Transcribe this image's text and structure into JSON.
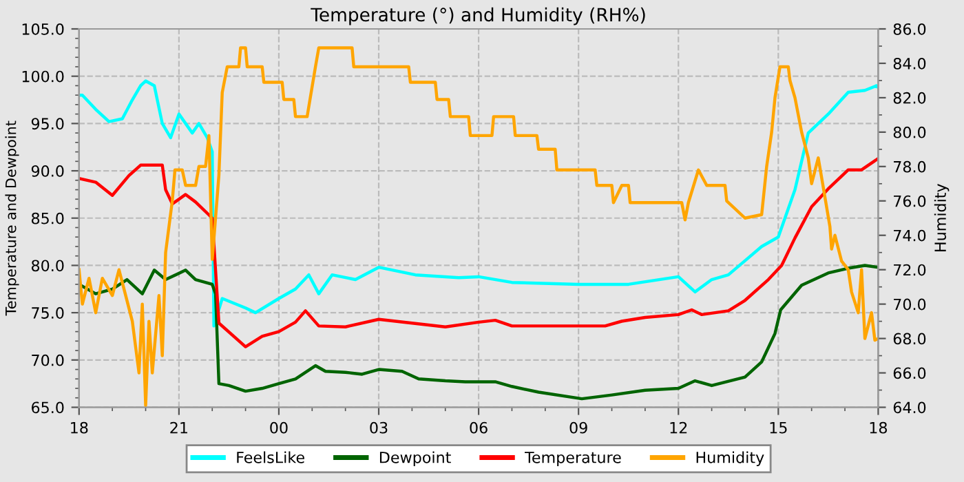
{
  "chart_data": {
    "type": "line",
    "title": "Temperature (°) and Humidity (RH%)",
    "ylabel": "Temperature and Dewpoint",
    "y2label": "Humidity",
    "xlim": [
      18,
      42
    ],
    "xticks": [
      {
        "value": 18,
        "label": "18"
      },
      {
        "value": 21,
        "label": "21"
      },
      {
        "value": 24,
        "label": "00"
      },
      {
        "value": 27,
        "label": "03"
      },
      {
        "value": 30,
        "label": "06"
      },
      {
        "value": 33,
        "label": "09"
      },
      {
        "value": 36,
        "label": "12"
      },
      {
        "value": 39,
        "label": "15"
      },
      {
        "value": 42,
        "label": "18"
      }
    ],
    "ylim": [
      65,
      105
    ],
    "yticks": [
      {
        "value": 65,
        "label": "65.0"
      },
      {
        "value": 70,
        "label": "70.0"
      },
      {
        "value": 75,
        "label": "75.0"
      },
      {
        "value": 80,
        "label": "80.0"
      },
      {
        "value": 85,
        "label": "85.0"
      },
      {
        "value": 90,
        "label": "90.0"
      },
      {
        "value": 95,
        "label": "95.0"
      },
      {
        "value": 100,
        "label": "100.0"
      },
      {
        "value": 105,
        "label": "105.0"
      }
    ],
    "y2lim": [
      64,
      86
    ],
    "y2ticks": [
      {
        "value": 64,
        "label": "64.0"
      },
      {
        "value": 66,
        "label": "66.0"
      },
      {
        "value": 68,
        "label": "68.0"
      },
      {
        "value": 70,
        "label": "70.0"
      },
      {
        "value": 72,
        "label": "72.0"
      },
      {
        "value": 74,
        "label": "74.0"
      },
      {
        "value": 76,
        "label": "76.0"
      },
      {
        "value": 78,
        "label": "78.0"
      },
      {
        "value": 80,
        "label": "80.0"
      },
      {
        "value": 82,
        "label": "82.0"
      },
      {
        "value": 84,
        "label": "84.0"
      },
      {
        "value": 86,
        "label": "86.0"
      }
    ],
    "grid": true,
    "legend": "bottom",
    "marker": "none",
    "line_style": "solid",
    "series": [
      {
        "name": "FeelsLike",
        "color": "#00ffff",
        "x": [
          18,
          18.1,
          18.5,
          18.9,
          19.3,
          19.6,
          19.85,
          20.0,
          20.26,
          20.5,
          20.75,
          21.0,
          21.4,
          21.6,
          21.85,
          22.0,
          22.05,
          22.3,
          23.0,
          23.3,
          24.0,
          24.5,
          24.9,
          25.2,
          25.6,
          26.3,
          27.0,
          28.1,
          29.4,
          30.0,
          31.0,
          33.0,
          34.5,
          36.0,
          36.5,
          37.0,
          37.5,
          38.0,
          38.5,
          39.0,
          39.5,
          39.9,
          40.5,
          41.1,
          41.6,
          41.95,
          42
        ],
        "values": [
          98,
          98,
          96.5,
          95.2,
          95.5,
          97.5,
          99,
          99.5,
          99,
          95,
          93.5,
          96,
          94,
          95,
          93.5,
          92,
          73.6,
          76.5,
          75.5,
          75,
          76.5,
          77.5,
          79,
          77,
          79,
          78.5,
          79.8,
          79,
          78.7,
          78.8,
          78.2,
          78,
          78,
          78.8,
          77.2,
          78.5,
          79,
          80.5,
          82,
          83,
          88,
          94,
          96,
          98.3,
          98.5,
          99,
          98.8
        ]
      },
      {
        "name": "Dewpoint",
        "color": "#006400",
        "x": [
          18,
          18.5,
          19,
          19.44,
          19.9,
          20.26,
          20.6,
          21.2,
          21.5,
          22.0,
          22.1,
          22.2,
          22.5,
          23.0,
          23.5,
          24.0,
          24.5,
          25.1,
          25.4,
          26,
          26.5,
          27.0,
          27.7,
          28.2,
          29,
          29.6,
          30.5,
          31.0,
          31.8,
          33.1,
          34,
          35,
          36,
          36.5,
          37,
          38,
          38.5,
          38.9,
          39.07,
          39.7,
          40.5,
          41.1,
          41.6,
          42
        ],
        "values": [
          78,
          77,
          77.5,
          78.5,
          77,
          79.5,
          78.5,
          79.5,
          78.5,
          78,
          77,
          67.5,
          67.3,
          66.7,
          67,
          67.5,
          68,
          69.4,
          68.8,
          68.7,
          68.5,
          69,
          68.8,
          68,
          67.8,
          67.7,
          67.7,
          67.2,
          66.6,
          65.9,
          66.3,
          66.8,
          67,
          67.8,
          67.3,
          68.2,
          69.8,
          72.8,
          75.3,
          77.9,
          79.2,
          79.7,
          80,
          79.8
        ]
      },
      {
        "name": "Temperature",
        "color": "#ff0000",
        "x": [
          18,
          18.5,
          19.0,
          19.5,
          19.85,
          20.5,
          20.6,
          20.8,
          21.2,
          21.5,
          22.0,
          22.2,
          23.0,
          23.5,
          24.0,
          24.5,
          24.8,
          25.2,
          26.0,
          27.0,
          28.0,
          29.0,
          30.0,
          30.5,
          31.0,
          33.8,
          34.3,
          35,
          36,
          36.4,
          36.7,
          37.5,
          38.0,
          38.7,
          39.1,
          39.5,
          40.0,
          40.5,
          41.1,
          41.5,
          42
        ],
        "values": [
          89.2,
          88.8,
          87.4,
          89.5,
          90.6,
          90.6,
          88,
          86.5,
          87.5,
          86.7,
          85,
          73.9,
          71.4,
          72.5,
          73,
          74,
          75.2,
          73.6,
          73.5,
          74.3,
          73.9,
          73.5,
          74,
          74.2,
          73.6,
          73.6,
          74.1,
          74.5,
          74.8,
          75.3,
          74.8,
          75.2,
          76.3,
          78.5,
          80,
          82.9,
          86.2,
          88.1,
          90.1,
          90.1,
          91.3
        ]
      },
      {
        "name": "Humidity",
        "color": "#ffa500",
        "axis": "y2",
        "x": [
          18,
          18.1,
          18.3,
          18.5,
          18.7,
          19.0,
          19.2,
          19.4,
          19.6,
          19.8,
          19.9,
          20.0,
          20.1,
          20.2,
          20.4,
          20.5,
          20.6,
          20.8,
          20.88,
          21.1,
          21.2,
          21.5,
          21.6,
          21.8,
          21.9,
          22.0,
          22.05,
          22.2,
          22.3,
          22.45,
          22.5,
          22.8,
          22.85,
          23.0,
          23.05,
          23.5,
          23.55,
          24.1,
          24.15,
          24.45,
          24.5,
          24.85,
          25.1,
          25.2,
          26.2,
          26.25,
          27.9,
          27.95,
          28.7,
          28.75,
          29.1,
          29.15,
          29.7,
          29.75,
          30.4,
          30.45,
          31.05,
          31.1,
          31.75,
          31.8,
          32.3,
          32.35,
          33.5,
          33.55,
          34.0,
          34.05,
          34.3,
          34.5,
          34.55,
          36.1,
          36.2,
          36.3,
          36.6,
          36.85,
          37.4,
          37.45,
          38.0,
          38.5,
          38.65,
          38.8,
          38.9,
          39.05,
          39.3,
          39.35,
          39.5,
          39.7,
          39.9,
          40.0,
          40.2,
          40.35,
          40.55,
          40.6,
          40.7,
          40.9,
          41.1,
          41.2,
          41.4,
          41.5,
          41.6,
          41.8,
          41.9,
          42
        ],
        "values": [
          72,
          70,
          71.5,
          69.5,
          71.5,
          70.5,
          72,
          70.5,
          69,
          66,
          70,
          64.1,
          69,
          66,
          70.5,
          67,
          73,
          76,
          77.8,
          77.8,
          76.9,
          76.9,
          78,
          78,
          79.8,
          72.6,
          73.8,
          77.5,
          82.3,
          83.8,
          83.8,
          83.8,
          84.9,
          84.9,
          83.8,
          83.8,
          82.9,
          82.9,
          81.9,
          81.9,
          80.9,
          80.9,
          83.8,
          84.9,
          84.9,
          83.8,
          83.8,
          82.9,
          82.9,
          81.9,
          81.9,
          80.9,
          80.9,
          79.8,
          79.8,
          80.9,
          80.9,
          79.8,
          79.8,
          79,
          79,
          77.8,
          77.8,
          76.9,
          76.9,
          75.9,
          76.9,
          76.9,
          75.9,
          75.9,
          74.9,
          75.9,
          77.8,
          76.9,
          76.9,
          76,
          75,
          75.2,
          78,
          80,
          82,
          83.8,
          83.8,
          83,
          82,
          80,
          78.5,
          77,
          78.5,
          76.8,
          74.5,
          73.2,
          74,
          72.5,
          72,
          70.7,
          69.5,
          72,
          68,
          69.5,
          67.9,
          68
        ]
      }
    ]
  }
}
